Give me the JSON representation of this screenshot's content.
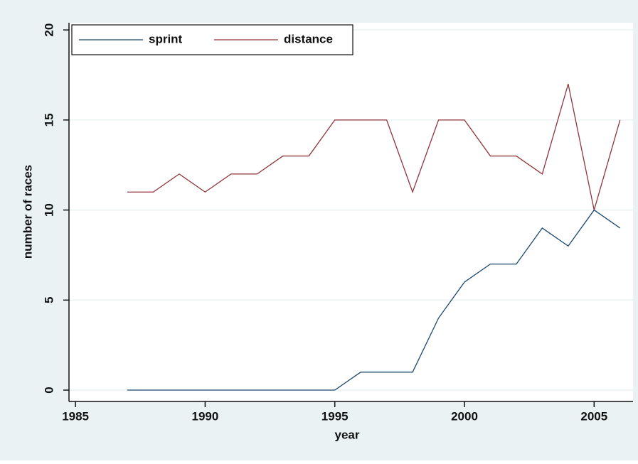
{
  "chart_data": {
    "type": "line",
    "x_label": "year",
    "y_label": "number of races",
    "x": [
      1987,
      1988,
      1989,
      1990,
      1991,
      1992,
      1993,
      1994,
      1995,
      1996,
      1997,
      1998,
      1999,
      2000,
      2001,
      2002,
      2003,
      2004,
      2005,
      2006
    ],
    "series": [
      {
        "name": "sprint",
        "color": "#1a476f",
        "values": [
          0,
          0,
          0,
          0,
          0,
          0,
          0,
          0,
          0,
          1,
          1,
          1,
          4,
          6,
          7,
          7,
          9,
          8,
          10,
          9
        ]
      },
      {
        "name": "distance",
        "color": "#90353b",
        "values": [
          11,
          11,
          12,
          11,
          12,
          12,
          13,
          13,
          15,
          15,
          15,
          11,
          15,
          15,
          13,
          13,
          12,
          17,
          10,
          15
        ]
      }
    ],
    "xlim": [
      1984.75,
      2006.5
    ],
    "xticks": [
      1985,
      1990,
      1995,
      2000,
      2005
    ],
    "ylim": [
      -0.63,
      20.4
    ],
    "yticks": [
      0,
      5,
      10,
      15,
      20
    ],
    "grid": true,
    "legend_position": "top-left"
  }
}
